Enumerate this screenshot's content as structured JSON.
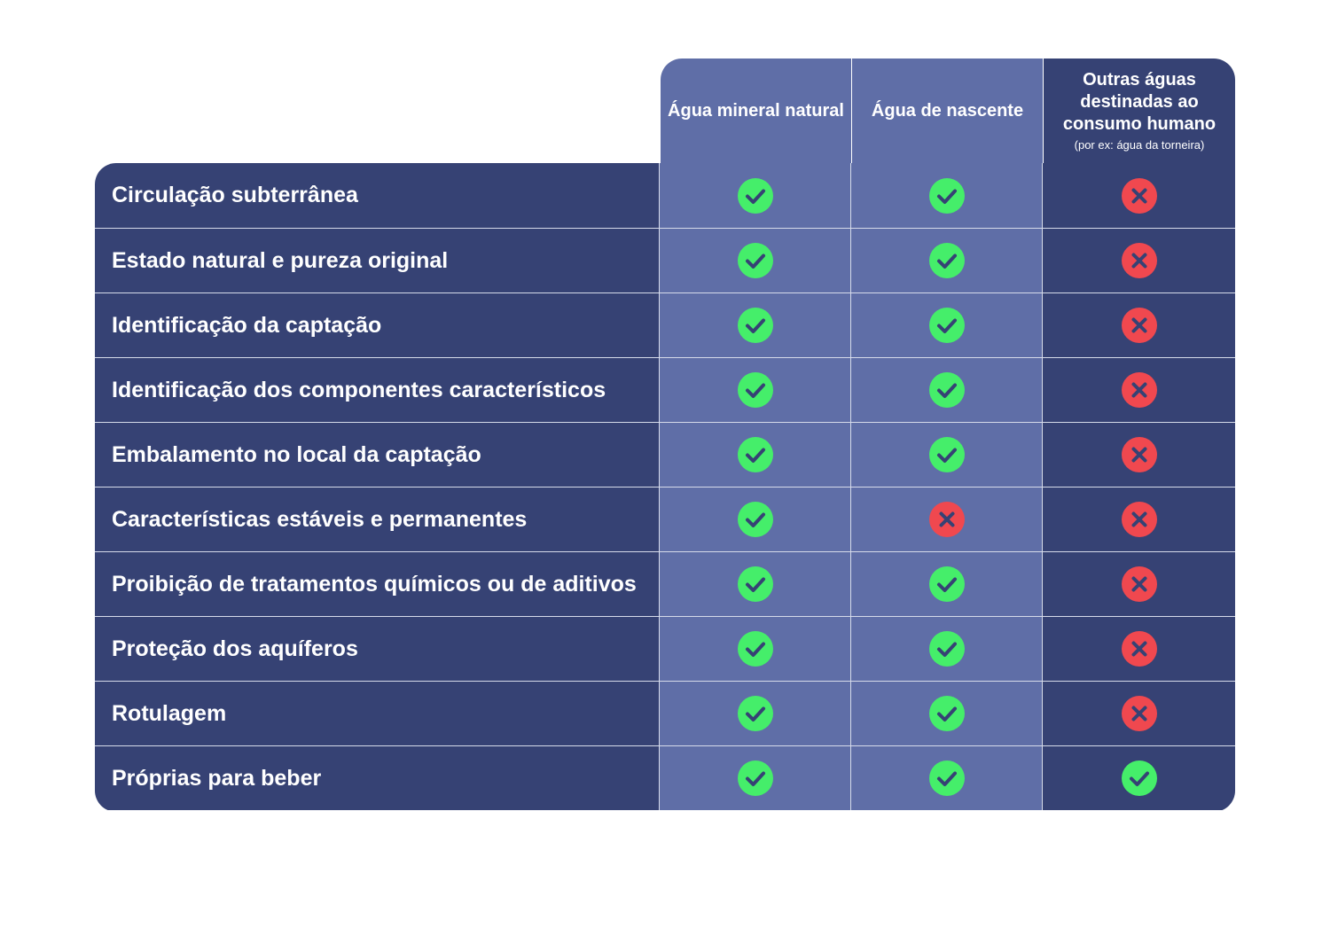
{
  "columns": [
    {
      "title": "Água mineral natural",
      "note": ""
    },
    {
      "title": "Água de nascente",
      "note": ""
    },
    {
      "title": "Outras águas destinadas ao consumo humano",
      "note": "(por ex: água da torneira)"
    }
  ],
  "rows": [
    {
      "label": "Circulação subterrânea",
      "values": [
        "check",
        "check",
        "cross"
      ]
    },
    {
      "label": "Estado natural e pureza original",
      "values": [
        "check",
        "check",
        "cross"
      ]
    },
    {
      "label": "Identificação da captação",
      "values": [
        "check",
        "check",
        "cross"
      ]
    },
    {
      "label": "Identificação dos componentes característicos",
      "values": [
        "check",
        "check",
        "cross"
      ]
    },
    {
      "label": "Embalamento no local da captação",
      "values": [
        "check",
        "check",
        "cross"
      ]
    },
    {
      "label": "Características estáveis e permanentes",
      "values": [
        "check",
        "cross",
        "cross"
      ]
    },
    {
      "label": "Proibição de tratamentos químicos ou de aditivos",
      "values": [
        "check",
        "check",
        "cross"
      ]
    },
    {
      "label": "Proteção dos aquíferos",
      "values": [
        "check",
        "check",
        "cross"
      ]
    },
    {
      "label": "Rotulagem",
      "values": [
        "check",
        "check",
        "cross"
      ]
    },
    {
      "label": "Próprias para beber",
      "values": [
        "check",
        "check",
        "check"
      ]
    }
  ],
  "icons": {
    "check": "check-circle-icon",
    "cross": "cross-circle-icon"
  },
  "colors": {
    "dark_navy": "#364274",
    "light_column": "#5f6ea7",
    "check_green": "#45ee6a",
    "cross_red": "#f0484f",
    "icon_mark": "#364274"
  }
}
